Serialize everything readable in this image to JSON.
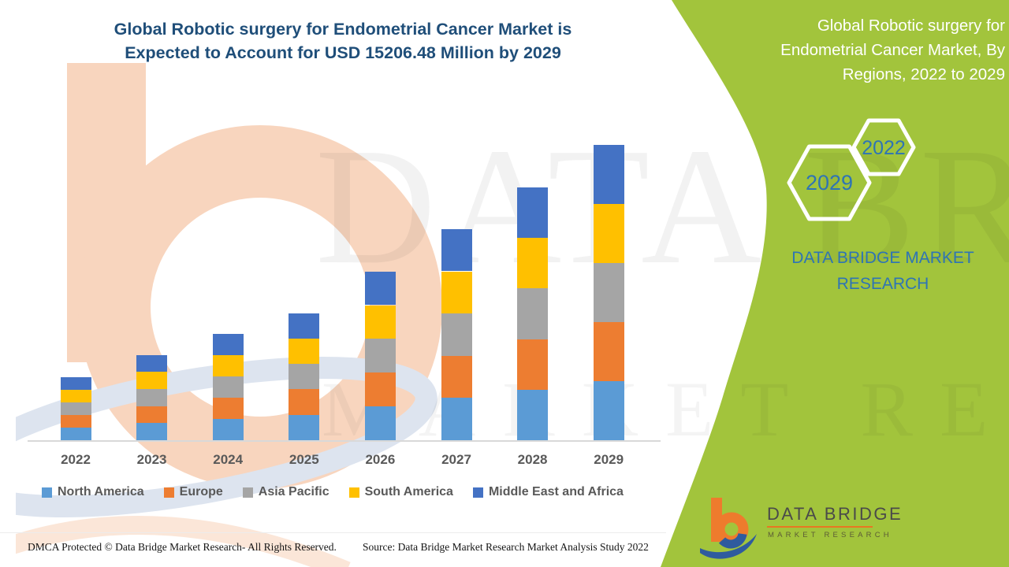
{
  "page": {
    "title_line1": "Global Robotic surgery for Endometrial Cancer Market is",
    "title_line2": "Expected to Account for USD 15206.48 Million by 2029"
  },
  "panel": {
    "title_lines": [
      "Global Robotic surgery for",
      "Endometrial Cancer Market, By",
      "Regions, 2022 to 2029"
    ],
    "hex_small_label": "2022",
    "hex_large_label": "2029",
    "brand_line1": "DATA BRIDGE MARKET",
    "brand_line2": "RESEARCH",
    "bg_color": "#A2C43C",
    "accent_text_color": "#2E74B5"
  },
  "logo": {
    "name": "DATA BRIDGE",
    "subtitle": "MARKET RESEARCH"
  },
  "watermark": {
    "line1": "DATA BRIDGE",
    "line2": "MARKET RESEARCH"
  },
  "footer": {
    "left": "DMCA Protected © Data Bridge Market Research- All Rights Reserved.",
    "right": "Source: Data Bridge Market Research Market Analysis Study 2022"
  },
  "chart_data": {
    "type": "bar",
    "stacked": true,
    "values_estimated_from_pixels": true,
    "unit": "USD Million",
    "grid": false,
    "y_axis_visible": false,
    "legend_position": "bottom",
    "categories": [
      "2022",
      "2023",
      "2024",
      "2025",
      "2026",
      "2027",
      "2028",
      "2029"
    ],
    "series": [
      {
        "name": "North America",
        "color": "#5B9BD5",
        "values": [
          647,
          879,
          1093,
          1309,
          1739,
          2175,
          2603,
          3041.3
        ]
      },
      {
        "name": "Europe",
        "color": "#ED7D31",
        "values": [
          647,
          879,
          1093,
          1309,
          1739,
          2175,
          2603,
          3041.3
        ]
      },
      {
        "name": "Asia Pacific",
        "color": "#A5A5A5",
        "values": [
          647,
          879,
          1093,
          1309,
          1739,
          2175,
          2603,
          3041.3
        ]
      },
      {
        "name": "South America",
        "color": "#FFC000",
        "values": [
          647,
          879,
          1093,
          1309,
          1739,
          2175,
          2603,
          3041.3
        ]
      },
      {
        "name": "Middle East and Africa",
        "color": "#4472C4",
        "values": [
          647,
          879,
          1093,
          1309,
          1739,
          2175,
          2603,
          3041.3
        ]
      }
    ],
    "totals": [
      3235,
      4395,
      5465,
      6545,
      8695,
      10875,
      13015,
      15206.48
    ]
  }
}
